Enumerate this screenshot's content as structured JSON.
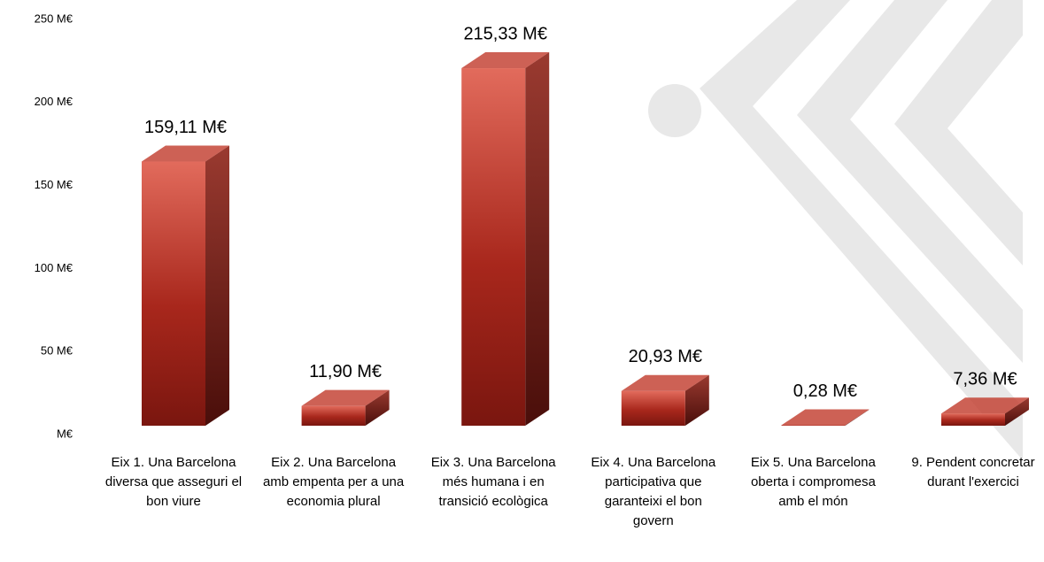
{
  "chart_data": {
    "type": "bar3d",
    "categories": [
      "Eix 1. Una Barcelona diversa que asseguri el bon viure",
      "Eix 2. Una Barcelona amb empenta per a una economia plural",
      "Eix 3. Una Barcelona més humana i en transició ecològica",
      "Eix 4. Una Barcelona participativa que garanteixi el bon govern",
      "Eix 5. Una Barcelona oberta i compromesa amb el món",
      "9. Pendent concretar durant l'exercici"
    ],
    "values": [
      159.11,
      11.9,
      215.33,
      20.93,
      0.28,
      7.36
    ],
    "value_labels": [
      "159,11 M€",
      "11,90 M€",
      "215,33 M€",
      "20,93 M€",
      "0,28 M€",
      "7,36 M€"
    ],
    "color": "#c0392b",
    "ylim": [
      0,
      250
    ],
    "yticks": [
      {
        "value": 0,
        "label": "M€"
      },
      {
        "value": 50,
        "label": "50 M€"
      },
      {
        "value": 100,
        "label": "100 M€"
      },
      {
        "value": 150,
        "label": "150 M€"
      },
      {
        "value": 200,
        "label": "200 M€"
      },
      {
        "value": 250,
        "label": "250 M€"
      }
    ]
  }
}
